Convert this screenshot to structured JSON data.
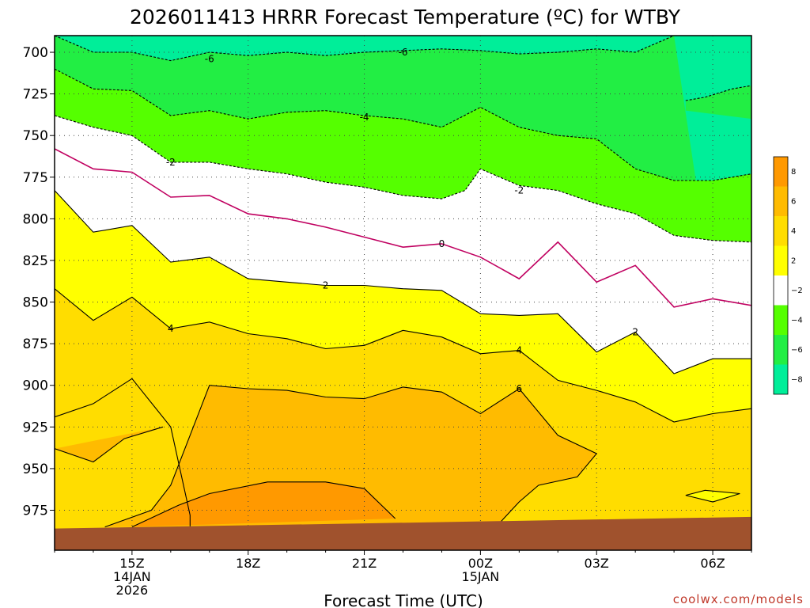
{
  "title": "2026011413 HRRR Forecast Temperature (ºC) for WTBY",
  "xlabel": "Forecast Time (UTC)",
  "credit": "coolwx.com/models",
  "colors": {
    "band_lt_neg6": "#00ee99",
    "band_neg6_neg4": "#22ee44",
    "band_neg4_neg2": "#55ff00",
    "band_neg2_2": "#ffffff",
    "band_2_4": "#ffff00",
    "band_4_6": "#ffdd00",
    "band_6_8": "#ffbb00",
    "band_gt_8": "#ff9900",
    "zero_line": "#c00060",
    "terrain": "#a0522d"
  },
  "chart_data": {
    "type": "time-height contour",
    "variable": "Temperature (ºC)",
    "y_axis": {
      "unit": "hPa",
      "ticks": [
        700,
        725,
        750,
        775,
        800,
        825,
        850,
        875,
        900,
        925,
        950,
        975
      ],
      "range": [
        690,
        999
      ],
      "inverted": true
    },
    "x_axis": {
      "unit": "hours UTC",
      "range": [
        13,
        31
      ],
      "tick_hours": [
        15,
        18,
        21,
        24,
        27,
        30
      ],
      "tick_labels": [
        {
          "hour": 15,
          "lines": [
            "15Z",
            "14JAN",
            "2026"
          ]
        },
        {
          "hour": 18,
          "lines": [
            "18Z"
          ]
        },
        {
          "hour": 21,
          "lines": [
            "21Z"
          ]
        },
        {
          "hour": 24,
          "lines": [
            "00Z",
            "15JAN"
          ]
        },
        {
          "hour": 27,
          "lines": [
            "03Z"
          ]
        },
        {
          "hour": 30,
          "lines": [
            "06Z"
          ]
        }
      ]
    },
    "grid": true,
    "contour_interval": 2,
    "contours": [
      {
        "level": -6,
        "dashed": true,
        "points": [
          [
            13,
            690
          ],
          [
            14,
            700
          ],
          [
            15,
            700
          ],
          [
            16,
            705
          ],
          [
            17,
            700
          ],
          [
            18,
            702
          ],
          [
            19,
            700
          ],
          [
            20,
            702
          ],
          [
            21,
            700
          ],
          [
            22,
            699
          ],
          [
            23,
            698
          ],
          [
            24,
            699
          ],
          [
            25,
            701
          ],
          [
            26,
            700
          ],
          [
            27,
            698
          ],
          [
            28,
            700
          ],
          [
            29,
            690
          ]
        ]
      },
      {
        "level": -6,
        "dashed": true,
        "points": [
          [
            29.3,
            729
          ],
          [
            29.8,
            727
          ],
          [
            30.5,
            722
          ],
          [
            31,
            720
          ]
        ]
      },
      {
        "level": -4,
        "dashed": true,
        "points": [
          [
            13,
            710
          ],
          [
            14,
            722
          ],
          [
            15,
            723
          ],
          [
            16,
            738
          ],
          [
            17,
            735
          ],
          [
            18,
            740
          ],
          [
            19,
            736
          ],
          [
            20,
            735
          ],
          [
            21,
            738
          ],
          [
            22,
            740
          ],
          [
            23,
            745
          ],
          [
            24,
            733
          ],
          [
            25,
            745
          ],
          [
            26,
            750
          ],
          [
            27,
            752
          ],
          [
            28,
            770
          ],
          [
            29,
            777
          ],
          [
            30,
            777
          ],
          [
            31,
            773
          ]
        ]
      },
      {
        "level": -2,
        "dashed": true,
        "points": [
          [
            13,
            738
          ],
          [
            14,
            745
          ],
          [
            15,
            750
          ],
          [
            16,
            766
          ],
          [
            17,
            766
          ],
          [
            18,
            770
          ],
          [
            19,
            773
          ],
          [
            20,
            778
          ],
          [
            21,
            781
          ],
          [
            22,
            786
          ],
          [
            23,
            788
          ],
          [
            23.6,
            783
          ],
          [
            24,
            770
          ],
          [
            25,
            780
          ],
          [
            26,
            783
          ],
          [
            27,
            791
          ],
          [
            28,
            797
          ],
          [
            29,
            810
          ],
          [
            30,
            813
          ],
          [
            31,
            814
          ]
        ]
      },
      {
        "level": 0,
        "dashed": false,
        "color": "#c00060",
        "points": [
          [
            13,
            758
          ],
          [
            14,
            770
          ],
          [
            15,
            772
          ],
          [
            16,
            787
          ],
          [
            17,
            786
          ],
          [
            18,
            797
          ],
          [
            19,
            800
          ],
          [
            20,
            805
          ],
          [
            21,
            811
          ],
          [
            22,
            817
          ],
          [
            23,
            815
          ],
          [
            24,
            823
          ],
          [
            25,
            836
          ],
          [
            26,
            814
          ],
          [
            27,
            838
          ],
          [
            28,
            828
          ],
          [
            29,
            853
          ],
          [
            30,
            848
          ],
          [
            31,
            852
          ]
        ]
      },
      {
        "level": 2,
        "dashed": false,
        "points": [
          [
            13,
            783
          ],
          [
            14,
            808
          ],
          [
            15,
            804
          ],
          [
            16,
            826
          ],
          [
            17,
            823
          ],
          [
            18,
            836
          ],
          [
            19,
            838
          ],
          [
            20,
            840
          ],
          [
            21,
            840
          ],
          [
            22,
            842
          ],
          [
            23,
            843
          ],
          [
            24,
            857
          ],
          [
            25,
            858
          ],
          [
            26,
            857
          ],
          [
            27,
            880
          ],
          [
            28,
            868
          ],
          [
            29,
            893
          ],
          [
            30,
            884
          ],
          [
            31,
            884
          ]
        ]
      },
      {
        "level": 4,
        "dashed": false,
        "points": [
          [
            13,
            842
          ],
          [
            14,
            861
          ],
          [
            15,
            847
          ],
          [
            16,
            866
          ],
          [
            17,
            862
          ],
          [
            18,
            869
          ],
          [
            19,
            872
          ],
          [
            20,
            878
          ],
          [
            21,
            876
          ],
          [
            22,
            867
          ],
          [
            23,
            871
          ],
          [
            24,
            881
          ],
          [
            25,
            879
          ],
          [
            26,
            897
          ],
          [
            27,
            903
          ],
          [
            28,
            910
          ],
          [
            29,
            922
          ],
          [
            30,
            917
          ],
          [
            31,
            914
          ]
        ]
      },
      {
        "level": 6,
        "dashed": false,
        "points": [
          [
            13,
            919
          ],
          [
            14,
            911
          ],
          [
            15,
            896
          ],
          [
            16,
            925
          ],
          [
            16.5,
            978
          ],
          [
            16.5,
            985
          ]
        ]
      },
      {
        "level": 6,
        "dashed": false,
        "points": [
          [
            15,
            985
          ],
          [
            16.2,
            972
          ],
          [
            17,
            965
          ],
          [
            18.5,
            958
          ],
          [
            20,
            958
          ],
          [
            21,
            962
          ],
          [
            21.8,
            980
          ]
        ]
      },
      {
        "level": 6,
        "dashed": false,
        "points": [
          [
            13,
            938
          ],
          [
            14,
            946
          ],
          [
            14.8,
            932
          ],
          [
            15.8,
            925
          ]
        ]
      },
      {
        "level": 6,
        "dashed": false,
        "points": [
          [
            14.3,
            985
          ],
          [
            15.5,
            975
          ],
          [
            16,
            960
          ],
          [
            17,
            900
          ],
          [
            18,
            902
          ],
          [
            19,
            903
          ],
          [
            20,
            907
          ],
          [
            21,
            908
          ],
          [
            22,
            901
          ],
          [
            23,
            904
          ],
          [
            24,
            917
          ],
          [
            25,
            902
          ],
          [
            26,
            930
          ],
          [
            27,
            941
          ],
          [
            26.5,
            955
          ],
          [
            25.5,
            960
          ],
          [
            25,
            970
          ],
          [
            24.4,
            985
          ]
        ]
      },
      {
        "level": 8,
        "dashed": false,
        "points": [
          [
            29.3,
            966
          ],
          [
            29.8,
            963
          ],
          [
            30.7,
            965
          ],
          [
            30,
            970
          ],
          [
            29.3,
            966
          ]
        ]
      }
    ],
    "contour_labels": [
      {
        "value": "-6",
        "x": 17,
        "y": 704
      },
      {
        "value": "-6",
        "x": 22,
        "y": 700
      },
      {
        "value": "-4",
        "x": 21,
        "y": 739
      },
      {
        "value": "-2",
        "x": 16,
        "y": 766
      },
      {
        "value": "-2",
        "x": 25,
        "y": 783
      },
      {
        "value": "0",
        "x": 23,
        "y": 815
      },
      {
        "value": "2",
        "x": 20,
        "y": 840
      },
      {
        "value": "2",
        "x": 28,
        "y": 868
      },
      {
        "value": "4",
        "x": 16,
        "y": 866
      },
      {
        "value": "4",
        "x": 25,
        "y": 879
      },
      {
        "value": "6",
        "x": 25,
        "y": 902
      }
    ],
    "colorbar": {
      "ticks": [
        "8",
        "6",
        "4",
        "2",
        "−2",
        "−4",
        "−6",
        "−8"
      ],
      "colors": [
        "#ff9900",
        "#ffbb00",
        "#ffdd00",
        "#ffff00",
        "#ffffff",
        "#55ff00",
        "#22ee44",
        "#00ee99"
      ]
    }
  }
}
